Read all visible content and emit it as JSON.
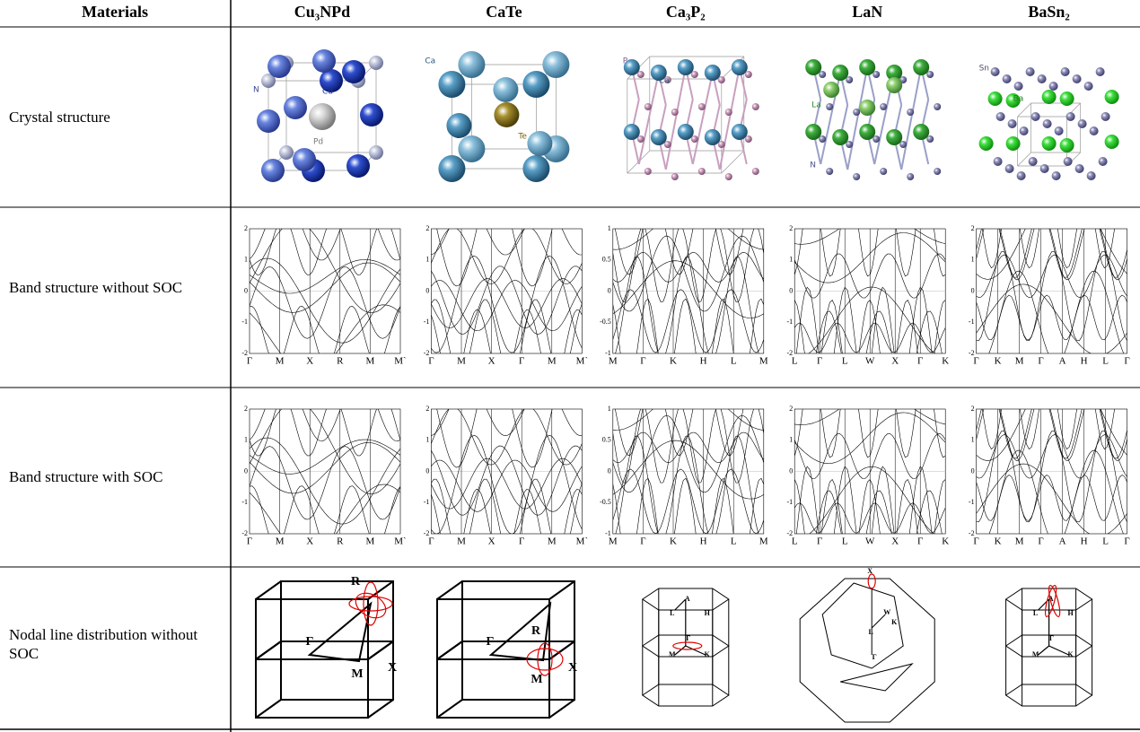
{
  "header": [
    "Materials",
    "Cu₃NPd",
    "CaTe",
    "Ca₃P₂",
    "LaN",
    "BaSn₂"
  ],
  "rows": [
    "Crystal structure",
    "Band structure without SOC",
    "Band structure with SOC",
    "Nodal line distribution without SOC"
  ],
  "crystal": [
    [
      "N",
      "Cu",
      "Pd"
    ],
    [
      "Ca",
      "Te"
    ],
    [
      "P",
      "Ca"
    ],
    [
      "La",
      "N"
    ],
    [
      "Sn",
      "Ba"
    ]
  ],
  "bands": [
    {
      "yticks": [
        "2",
        "1",
        "0",
        "-1",
        "-2"
      ],
      "kpath": [
        "Γ",
        "M",
        "X",
        "R",
        "M",
        "M`"
      ]
    },
    {
      "yticks": [
        "2",
        "1",
        "0",
        "-1",
        "-2"
      ],
      "kpath": [
        "Γ",
        "M",
        "X",
        "Γ",
        "M",
        "M`"
      ]
    },
    {
      "yticks": [
        "1",
        "0.5",
        "0",
        "-0.5",
        "-1"
      ],
      "kpath": [
        "M",
        "Γ",
        "K",
        "H",
        "L",
        "M"
      ]
    },
    {
      "yticks": [
        "2",
        "1",
        "0",
        "-1",
        "-2"
      ],
      "kpath": [
        "L",
        "Γ",
        "L",
        "W",
        "X",
        "Γ",
        "K"
      ]
    },
    {
      "yticks": [
        "2",
        "1",
        "0",
        "-1",
        "-2"
      ],
      "kpath": [
        "Γ",
        "K",
        "M",
        "Γ",
        "A",
        "H",
        "L",
        "Γ"
      ]
    }
  ],
  "nodal": [
    [
      "R",
      "Γ",
      "M",
      "X"
    ],
    [
      "Γ",
      "R",
      "M",
      "X"
    ],
    [
      "A",
      "L",
      "H",
      "Γ",
      "M",
      "K"
    ],
    [
      "X",
      "W",
      "L",
      "K",
      "Γ"
    ],
    [
      "A",
      "L",
      "H",
      "Γ",
      "M",
      "K"
    ]
  ]
}
